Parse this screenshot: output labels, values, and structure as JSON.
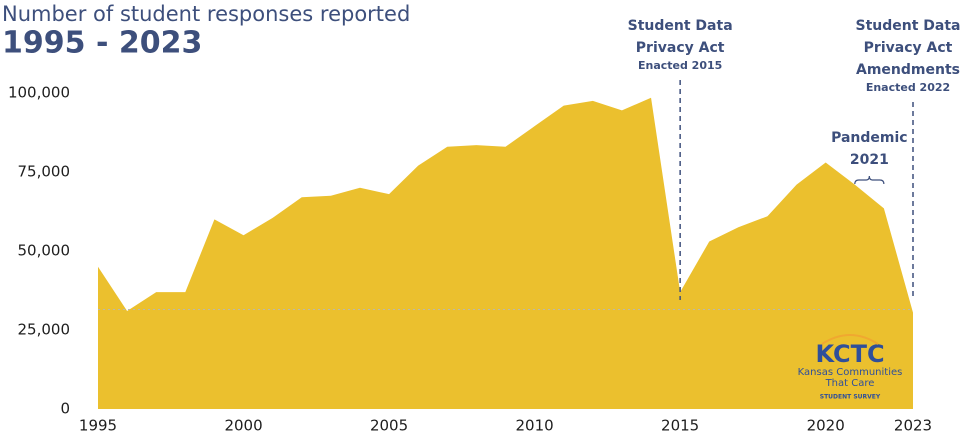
{
  "chart_data": {
    "type": "area",
    "title": "Number of student responses reported",
    "subtitle": "1995 - 2023",
    "x": [
      1995,
      1996,
      1997,
      1998,
      1999,
      2000,
      2001,
      2002,
      2003,
      2004,
      2005,
      2006,
      2007,
      2008,
      2009,
      2010,
      2011,
      2012,
      2013,
      2014,
      2015,
      2016,
      2017,
      2018,
      2019,
      2020,
      2021,
      2022,
      2023
    ],
    "values": [
      45000,
      31000,
      37000,
      37000,
      60000,
      55000,
      60500,
      67000,
      67500,
      70000,
      68000,
      77000,
      83000,
      83500,
      83000,
      89500,
      96000,
      97500,
      94500,
      98500,
      37000,
      53000,
      57500,
      61000,
      71000,
      78000,
      71000,
      63500,
      30500
    ],
    "color": "#ebc02e",
    "xlim": [
      1995,
      2023
    ],
    "xticks": [
      1995,
      2000,
      2005,
      2010,
      2015,
      2020,
      2023
    ],
    "ylim": [
      0,
      100000
    ],
    "yticks": [
      0,
      {
        "value": 25000,
        "label": "25,000"
      },
      {
        "value": 50000,
        "label": "50,000"
      },
      {
        "value": 75000,
        "label": "75,000"
      },
      {
        "value": 100000,
        "label": "100,000"
      }
    ],
    "reference_line": 31500,
    "annotations": [
      {
        "x": 2015,
        "lines": [
          "Student Data",
          "Privacy Act"
        ],
        "note": "Enacted 2015"
      },
      {
        "x": 2023,
        "lines": [
          "Student Data",
          "Privacy Act",
          "Amendments"
        ],
        "note": "Enacted 2022"
      }
    ],
    "span_annotation": {
      "lines": [
        "Pandemic",
        "2021"
      ],
      "span": [
        2021,
        2022
      ]
    },
    "logo": {
      "mark": "KCTC",
      "lines": [
        "Kansas Communities",
        "That Care"
      ],
      "tagline": "STUDENT SURVEY"
    }
  }
}
